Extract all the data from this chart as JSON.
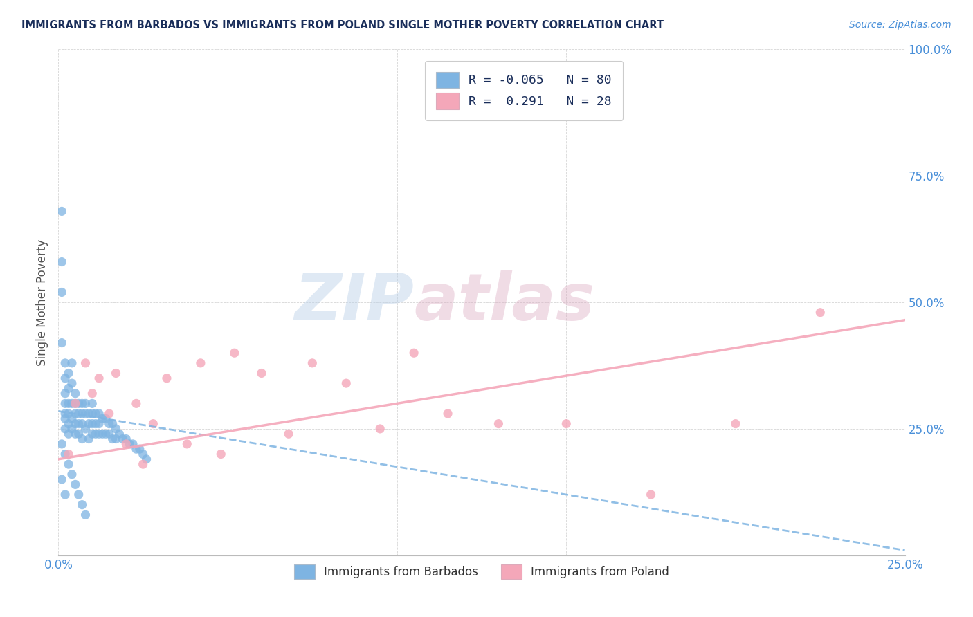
{
  "title": "IMMIGRANTS FROM BARBADOS VS IMMIGRANTS FROM POLAND SINGLE MOTHER POVERTY CORRELATION CHART",
  "source": "Source: ZipAtlas.com",
  "ylabel_label": "Single Mother Poverty",
  "xlim": [
    0.0,
    0.25
  ],
  "ylim": [
    0.0,
    1.0
  ],
  "xticklabels_vals": [
    0.0,
    0.05,
    0.1,
    0.15,
    0.2,
    0.25
  ],
  "ytick_vals": [
    0.0,
    0.25,
    0.5,
    0.75,
    1.0
  ],
  "legend_r_barbados": "-0.065",
  "legend_n_barbados": "80",
  "legend_r_poland": "0.291",
  "legend_n_poland": "28",
  "color_barbados": "#7EB4E2",
  "color_poland": "#F4A7B9",
  "watermark_zip": "ZIP",
  "watermark_atlas": "atlas",
  "barbados_x": [
    0.001,
    0.001,
    0.001,
    0.001,
    0.002,
    0.002,
    0.002,
    0.002,
    0.002,
    0.002,
    0.002,
    0.003,
    0.003,
    0.003,
    0.003,
    0.003,
    0.003,
    0.004,
    0.004,
    0.004,
    0.004,
    0.004,
    0.005,
    0.005,
    0.005,
    0.005,
    0.005,
    0.006,
    0.006,
    0.006,
    0.006,
    0.007,
    0.007,
    0.007,
    0.007,
    0.008,
    0.008,
    0.008,
    0.009,
    0.009,
    0.009,
    0.01,
    0.01,
    0.01,
    0.01,
    0.011,
    0.011,
    0.011,
    0.012,
    0.012,
    0.012,
    0.013,
    0.013,
    0.014,
    0.014,
    0.015,
    0.015,
    0.016,
    0.016,
    0.017,
    0.017,
    0.018,
    0.019,
    0.02,
    0.021,
    0.022,
    0.023,
    0.024,
    0.025,
    0.026,
    0.001,
    0.001,
    0.002,
    0.002,
    0.003,
    0.004,
    0.005,
    0.006,
    0.007,
    0.008
  ],
  "barbados_y": [
    0.68,
    0.58,
    0.52,
    0.42,
    0.38,
    0.35,
    0.32,
    0.3,
    0.28,
    0.27,
    0.25,
    0.36,
    0.33,
    0.3,
    0.28,
    0.26,
    0.24,
    0.38,
    0.34,
    0.3,
    0.27,
    0.25,
    0.32,
    0.3,
    0.28,
    0.26,
    0.24,
    0.3,
    0.28,
    0.26,
    0.24,
    0.3,
    0.28,
    0.26,
    0.23,
    0.3,
    0.28,
    0.25,
    0.28,
    0.26,
    0.23,
    0.3,
    0.28,
    0.26,
    0.24,
    0.28,
    0.26,
    0.24,
    0.28,
    0.26,
    0.24,
    0.27,
    0.24,
    0.27,
    0.24,
    0.26,
    0.24,
    0.26,
    0.23,
    0.25,
    0.23,
    0.24,
    0.23,
    0.23,
    0.22,
    0.22,
    0.21,
    0.21,
    0.2,
    0.19,
    0.22,
    0.15,
    0.2,
    0.12,
    0.18,
    0.16,
    0.14,
    0.12,
    0.1,
    0.08
  ],
  "poland_x": [
    0.003,
    0.005,
    0.008,
    0.01,
    0.012,
    0.015,
    0.017,
    0.02,
    0.023,
    0.025,
    0.028,
    0.032,
    0.038,
    0.042,
    0.048,
    0.052,
    0.06,
    0.068,
    0.075,
    0.085,
    0.095,
    0.105,
    0.115,
    0.13,
    0.15,
    0.175,
    0.2,
    0.225
  ],
  "poland_y": [
    0.2,
    0.3,
    0.38,
    0.32,
    0.35,
    0.28,
    0.36,
    0.22,
    0.3,
    0.18,
    0.26,
    0.35,
    0.22,
    0.38,
    0.2,
    0.4,
    0.36,
    0.24,
    0.38,
    0.34,
    0.25,
    0.4,
    0.28,
    0.26,
    0.26,
    0.12,
    0.26,
    0.48
  ],
  "barbados_trend_x": [
    0.0,
    0.25
  ],
  "barbados_trend_y": [
    0.285,
    0.01
  ],
  "poland_trend_x": [
    0.0,
    0.25
  ],
  "poland_trend_y": [
    0.19,
    0.465
  ]
}
